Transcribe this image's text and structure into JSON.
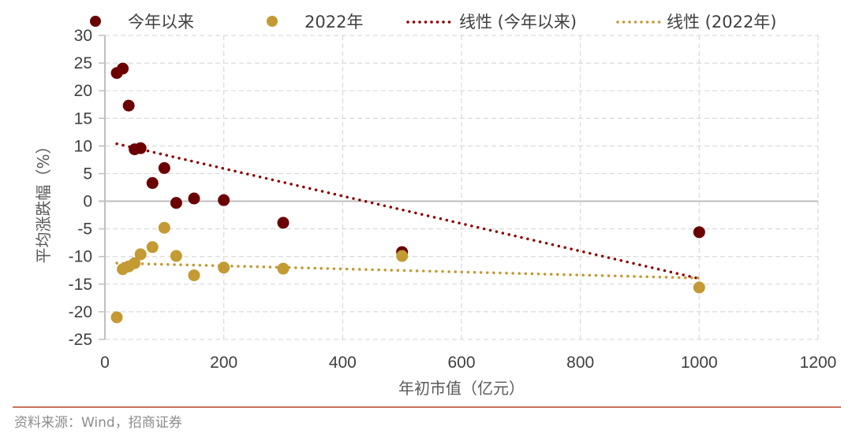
{
  "chart_data": {
    "type": "scatter",
    "title": "",
    "xlabel": "年初市值（亿元）",
    "ylabel": "平均涨跌幅（%）",
    "xlim": [
      0,
      1200
    ],
    "ylim": [
      -25,
      30
    ],
    "x_ticks": [
      0,
      200,
      400,
      600,
      800,
      1000,
      1200
    ],
    "y_ticks": [
      30,
      25,
      20,
      15,
      10,
      5,
      0,
      -5,
      -10,
      -15,
      -20,
      -25
    ],
    "grid": true,
    "legend_position": "top",
    "series": [
      {
        "name": "今年以来",
        "color": "#6b0000",
        "points": [
          {
            "x": 20,
            "y": 23.2
          },
          {
            "x": 30,
            "y": 24.0
          },
          {
            "x": 40,
            "y": 17.3
          },
          {
            "x": 50,
            "y": 9.4
          },
          {
            "x": 60,
            "y": 9.6
          },
          {
            "x": 80,
            "y": 3.3
          },
          {
            "x": 100,
            "y": 6.0
          },
          {
            "x": 120,
            "y": -0.3
          },
          {
            "x": 150,
            "y": 0.5
          },
          {
            "x": 200,
            "y": 0.2
          },
          {
            "x": 300,
            "y": -3.9
          },
          {
            "x": 500,
            "y": -9.2
          },
          {
            "x": 1000,
            "y": -5.6
          }
        ]
      },
      {
        "name": "2022年",
        "color": "#c39a33",
        "points": [
          {
            "x": 20,
            "y": -21.0
          },
          {
            "x": 30,
            "y": -12.3
          },
          {
            "x": 40,
            "y": -11.8
          },
          {
            "x": 50,
            "y": -11.2
          },
          {
            "x": 60,
            "y": -9.6
          },
          {
            "x": 80,
            "y": -8.3
          },
          {
            "x": 100,
            "y": -4.8
          },
          {
            "x": 120,
            "y": -9.9
          },
          {
            "x": 150,
            "y": -13.4
          },
          {
            "x": 200,
            "y": -12.0
          },
          {
            "x": 300,
            "y": -12.2
          },
          {
            "x": 500,
            "y": -9.9
          },
          {
            "x": 1000,
            "y": -15.6
          }
        ]
      }
    ],
    "trendlines": [
      {
        "name": "线性 (今年以来)",
        "color": "#8b0000",
        "style": "dotted",
        "from": {
          "x": 20,
          "y": 10.4
        },
        "to": {
          "x": 1000,
          "y": -14.0
        }
      },
      {
        "name": "线性 (2022年)",
        "color": "#c39a33",
        "style": "dotted",
        "from": {
          "x": 20,
          "y": -11.2
        },
        "to": {
          "x": 1000,
          "y": -13.9
        }
      }
    ]
  },
  "legend": {
    "items": [
      {
        "label": "今年以来",
        "type": "marker",
        "color": "#6b0000"
      },
      {
        "label": "2022年",
        "type": "marker",
        "color": "#c39a33"
      },
      {
        "label": "线性 (今年以来)",
        "type": "dotted-line",
        "color": "#8b0000"
      },
      {
        "label": "线性 (2022年)",
        "type": "dotted-line",
        "color": "#c39a33"
      }
    ]
  },
  "source": "资料来源：Wind，招商证券"
}
